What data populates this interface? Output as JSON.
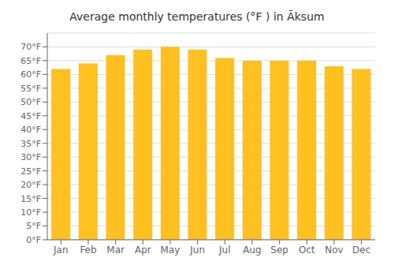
{
  "chart_data": {
    "type": "bar",
    "title": "Average monthly temperatures (°F ) in Āksum",
    "categories": [
      "Jan",
      "Feb",
      "Mar",
      "Apr",
      "May",
      "Jun",
      "Jul",
      "Aug",
      "Sep",
      "Oct",
      "Nov",
      "Dec"
    ],
    "values": [
      62,
      64,
      67,
      69,
      70,
      69,
      66,
      65,
      65,
      65,
      63,
      62
    ],
    "color": "#FFC020",
    "ylim": [
      0,
      75
    ],
    "yticks": [
      {
        "value": 0,
        "label": "0°F"
      },
      {
        "value": 5,
        "label": "5°F"
      },
      {
        "value": 10,
        "label": "10°F"
      },
      {
        "value": 15,
        "label": "15°F"
      },
      {
        "value": 20,
        "label": "20°F"
      },
      {
        "value": 25,
        "label": "25°F"
      },
      {
        "value": 30,
        "label": "30°F"
      },
      {
        "value": 35,
        "label": "35°F"
      },
      {
        "value": 40,
        "label": "40°F"
      },
      {
        "value": 45,
        "label": "45°F"
      },
      {
        "value": 50,
        "label": "50°F"
      },
      {
        "value": 55,
        "label": "55°F"
      },
      {
        "value": 60,
        "label": "60°F"
      },
      {
        "value": 65,
        "label": "65°F"
      },
      {
        "value": 70,
        "label": "70°F"
      }
    ],
    "grid": true
  }
}
